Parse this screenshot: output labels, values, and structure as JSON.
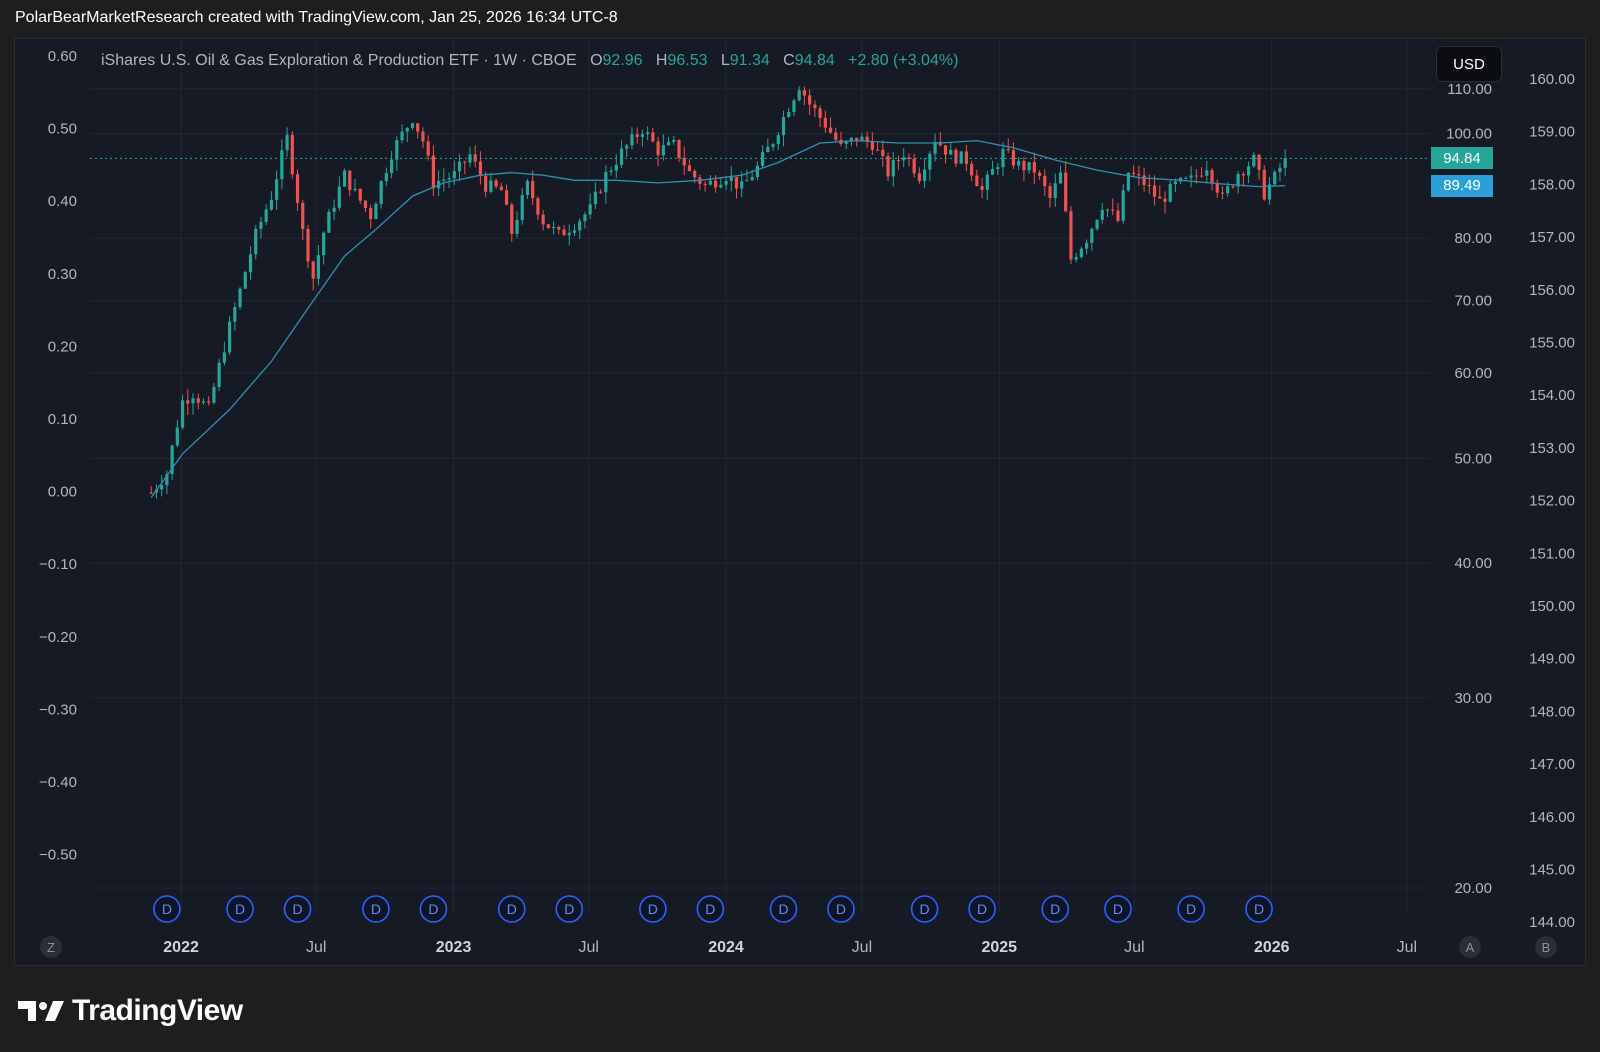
{
  "caption": "PolarBearMarketResearch created with TradingView.com, Jan 25, 2026 16:34 UTC-8",
  "legend": {
    "title": "iShares U.S. Oil & Gas Exploration & Production ETF · 1W · CBOE",
    "open_label": "O",
    "open": "92.96",
    "high_label": "H",
    "high": "96.53",
    "low_label": "L",
    "low": "91.34",
    "close_label": "C",
    "close": "94.84",
    "change": "+2.80 (+3.04%)"
  },
  "currency_button": "USD",
  "price_tags": {
    "last": "94.84",
    "ma": "89.49"
  },
  "colors": {
    "up": "#26a69a",
    "down": "#ef5350",
    "ma": "#2f8fb2",
    "ma_tag": "#2a9fd8",
    "background": "#161a25"
  },
  "corner_buttons": {
    "left": "Z",
    "auto": "A",
    "log": "B"
  },
  "dividend_marker": "D",
  "brand": "TradingView",
  "chart_data": {
    "type": "candlestick",
    "interval": "1W",
    "x_axis": {
      "labels": [
        "2022",
        "Jul",
        "2023",
        "Jul",
        "2024",
        "Jul",
        "2025",
        "Jul",
        "2026",
        "Jul"
      ],
      "range": [
        "2021-09",
        "2026-08"
      ]
    },
    "y_axis_price": {
      "ticks": [
        "110.00",
        "100.00",
        "80.00",
        "70.00",
        "60.00",
        "50.00",
        "40.00",
        "30.00",
        "20.00"
      ],
      "scale": "log",
      "range": [
        20,
        115
      ]
    },
    "y_axis_left": {
      "ticks": [
        "0.60",
        "0.50",
        "0.40",
        "0.30",
        "0.20",
        "0.10",
        "0.00",
        "−0.10",
        "−0.20",
        "−0.30",
        "−0.40",
        "−0.50"
      ],
      "range": [
        -0.5,
        0.6
      ]
    },
    "y_axis_right": {
      "ticks": [
        "160.00",
        "159.00",
        "158.00",
        "157.00",
        "156.00",
        "155.00",
        "154.00",
        "153.00",
        "152.00",
        "151.00",
        "150.00",
        "149.00",
        "148.00",
        "147.00",
        "146.00",
        "145.00",
        "144.00"
      ],
      "range": [
        144,
        160
      ]
    },
    "price_path": [
      [
        "2021-11-22",
        46.5
      ],
      [
        "2021-12-13",
        48.5
      ],
      [
        "2022-01-03",
        56.5
      ],
      [
        "2022-01-17",
        57.5
      ],
      [
        "2022-02-07",
        55.5
      ],
      [
        "2022-02-28",
        63.5
      ],
      [
        "2022-03-21",
        71.5
      ],
      [
        "2022-04-11",
        80.5
      ],
      [
        "2022-05-02",
        87.5
      ],
      [
        "2022-05-23",
        99.0
      ],
      [
        "2022-06-13",
        81.0
      ],
      [
        "2022-06-27",
        73.5
      ],
      [
        "2022-07-11",
        81.0
      ],
      [
        "2022-08-08",
        91.5
      ],
      [
        "2022-08-22",
        88.0
      ],
      [
        "2022-09-12",
        84.0
      ],
      [
        "2022-10-10",
        96.0
      ],
      [
        "2022-11-07",
        103.5
      ],
      [
        "2022-11-21",
        98.5
      ],
      [
        "2022-12-05",
        90.0
      ],
      [
        "2023-01-02",
        91.5
      ],
      [
        "2023-01-23",
        95.5
      ],
      [
        "2023-02-13",
        89.5
      ],
      [
        "2023-03-06",
        88.5
      ],
      [
        "2023-03-20",
        81.0
      ],
      [
        "2023-04-10",
        89.5
      ],
      [
        "2023-05-01",
        83.0
      ],
      [
        "2023-05-22",
        80.5
      ],
      [
        "2023-06-12",
        82.5
      ],
      [
        "2023-07-03",
        85.0
      ],
      [
        "2023-07-24",
        91.5
      ],
      [
        "2023-08-14",
        96.0
      ],
      [
        "2023-09-11",
        101.0
      ],
      [
        "2023-10-02",
        96.5
      ],
      [
        "2023-10-23",
        97.5
      ],
      [
        "2023-11-13",
        92.0
      ],
      [
        "2023-12-04",
        89.5
      ],
      [
        "2024-01-01",
        91.5
      ],
      [
        "2024-01-22",
        89.0
      ],
      [
        "2024-02-12",
        93.0
      ],
      [
        "2024-03-04",
        98.5
      ],
      [
        "2024-03-25",
        106.0
      ],
      [
        "2024-04-08",
        111.0
      ],
      [
        "2024-04-22",
        106.5
      ],
      [
        "2024-05-13",
        102.0
      ],
      [
        "2024-06-03",
        97.0
      ],
      [
        "2024-06-24",
        99.0
      ],
      [
        "2024-07-15",
        98.0
      ],
      [
        "2024-08-05",
        92.0
      ],
      [
        "2024-08-26",
        96.0
      ],
      [
        "2024-09-16",
        91.5
      ],
      [
        "2024-10-07",
        99.0
      ],
      [
        "2024-10-28",
        95.5
      ],
      [
        "2024-11-18",
        94.5
      ],
      [
        "2024-12-09",
        88.5
      ],
      [
        "2025-01-06",
        96.0
      ],
      [
        "2025-01-27",
        93.5
      ],
      [
        "2025-02-17",
        92.5
      ],
      [
        "2025-03-10",
        87.0
      ],
      [
        "2025-03-24",
        91.5
      ],
      [
        "2025-04-07",
        76.5
      ],
      [
        "2025-04-28",
        80.0
      ],
      [
        "2025-05-19",
        86.0
      ],
      [
        "2025-06-09",
        83.0
      ],
      [
        "2025-06-23",
        92.0
      ],
      [
        "2025-07-14",
        90.0
      ],
      [
        "2025-08-04",
        86.5
      ],
      [
        "2025-08-25",
        89.5
      ],
      [
        "2025-09-15",
        90.5
      ],
      [
        "2025-10-06",
        93.5
      ],
      [
        "2025-10-27",
        87.0
      ],
      [
        "2025-11-17",
        92.0
      ],
      [
        "2025-12-08",
        94.5
      ],
      [
        "2025-12-22",
        88.0
      ],
      [
        "2026-01-05",
        91.0
      ],
      [
        "2026-01-19",
        94.84
      ]
    ],
    "moving_average": [
      [
        "2021-11-22",
        46.0
      ],
      [
        "2022-01-03",
        50.5
      ],
      [
        "2022-03-07",
        55.5
      ],
      [
        "2022-05-02",
        61.5
      ],
      [
        "2022-06-27",
        70.0
      ],
      [
        "2022-08-08",
        77.0
      ],
      [
        "2022-09-19",
        81.5
      ],
      [
        "2022-11-07",
        87.5
      ],
      [
        "2022-12-19",
        90.0
      ],
      [
        "2023-02-06",
        91.5
      ],
      [
        "2023-03-20",
        92.0
      ],
      [
        "2023-05-01",
        91.5
      ],
      [
        "2023-06-12",
        90.5
      ],
      [
        "2023-08-07",
        90.5
      ],
      [
        "2023-10-02",
        90.0
      ],
      [
        "2023-11-27",
        90.5
      ],
      [
        "2024-01-22",
        91.5
      ],
      [
        "2024-03-11",
        94.0
      ],
      [
        "2024-05-06",
        98.0
      ],
      [
        "2024-06-24",
        98.5
      ],
      [
        "2024-08-19",
        98.0
      ],
      [
        "2024-10-14",
        98.0
      ],
      [
        "2024-12-02",
        98.5
      ],
      [
        "2025-01-20",
        97.0
      ],
      [
        "2025-03-17",
        94.5
      ],
      [
        "2025-05-12",
        92.5
      ],
      [
        "2025-07-07",
        91.0
      ],
      [
        "2025-09-01",
        90.5
      ],
      [
        "2025-10-27",
        89.8
      ],
      [
        "2025-12-15",
        89.3
      ],
      [
        "2026-01-19",
        89.49
      ]
    ],
    "last_close": 94.84,
    "ma_value": 89.49,
    "dividend_dates": [
      "2021-12-13",
      "2022-03-21",
      "2022-06-06",
      "2022-09-19",
      "2022-12-05",
      "2023-03-20",
      "2023-06-05",
      "2023-09-25",
      "2023-12-11",
      "2024-03-18",
      "2024-06-03",
      "2024-09-23",
      "2024-12-09",
      "2025-03-17",
      "2025-06-09",
      "2025-09-15",
      "2025-12-15"
    ]
  }
}
